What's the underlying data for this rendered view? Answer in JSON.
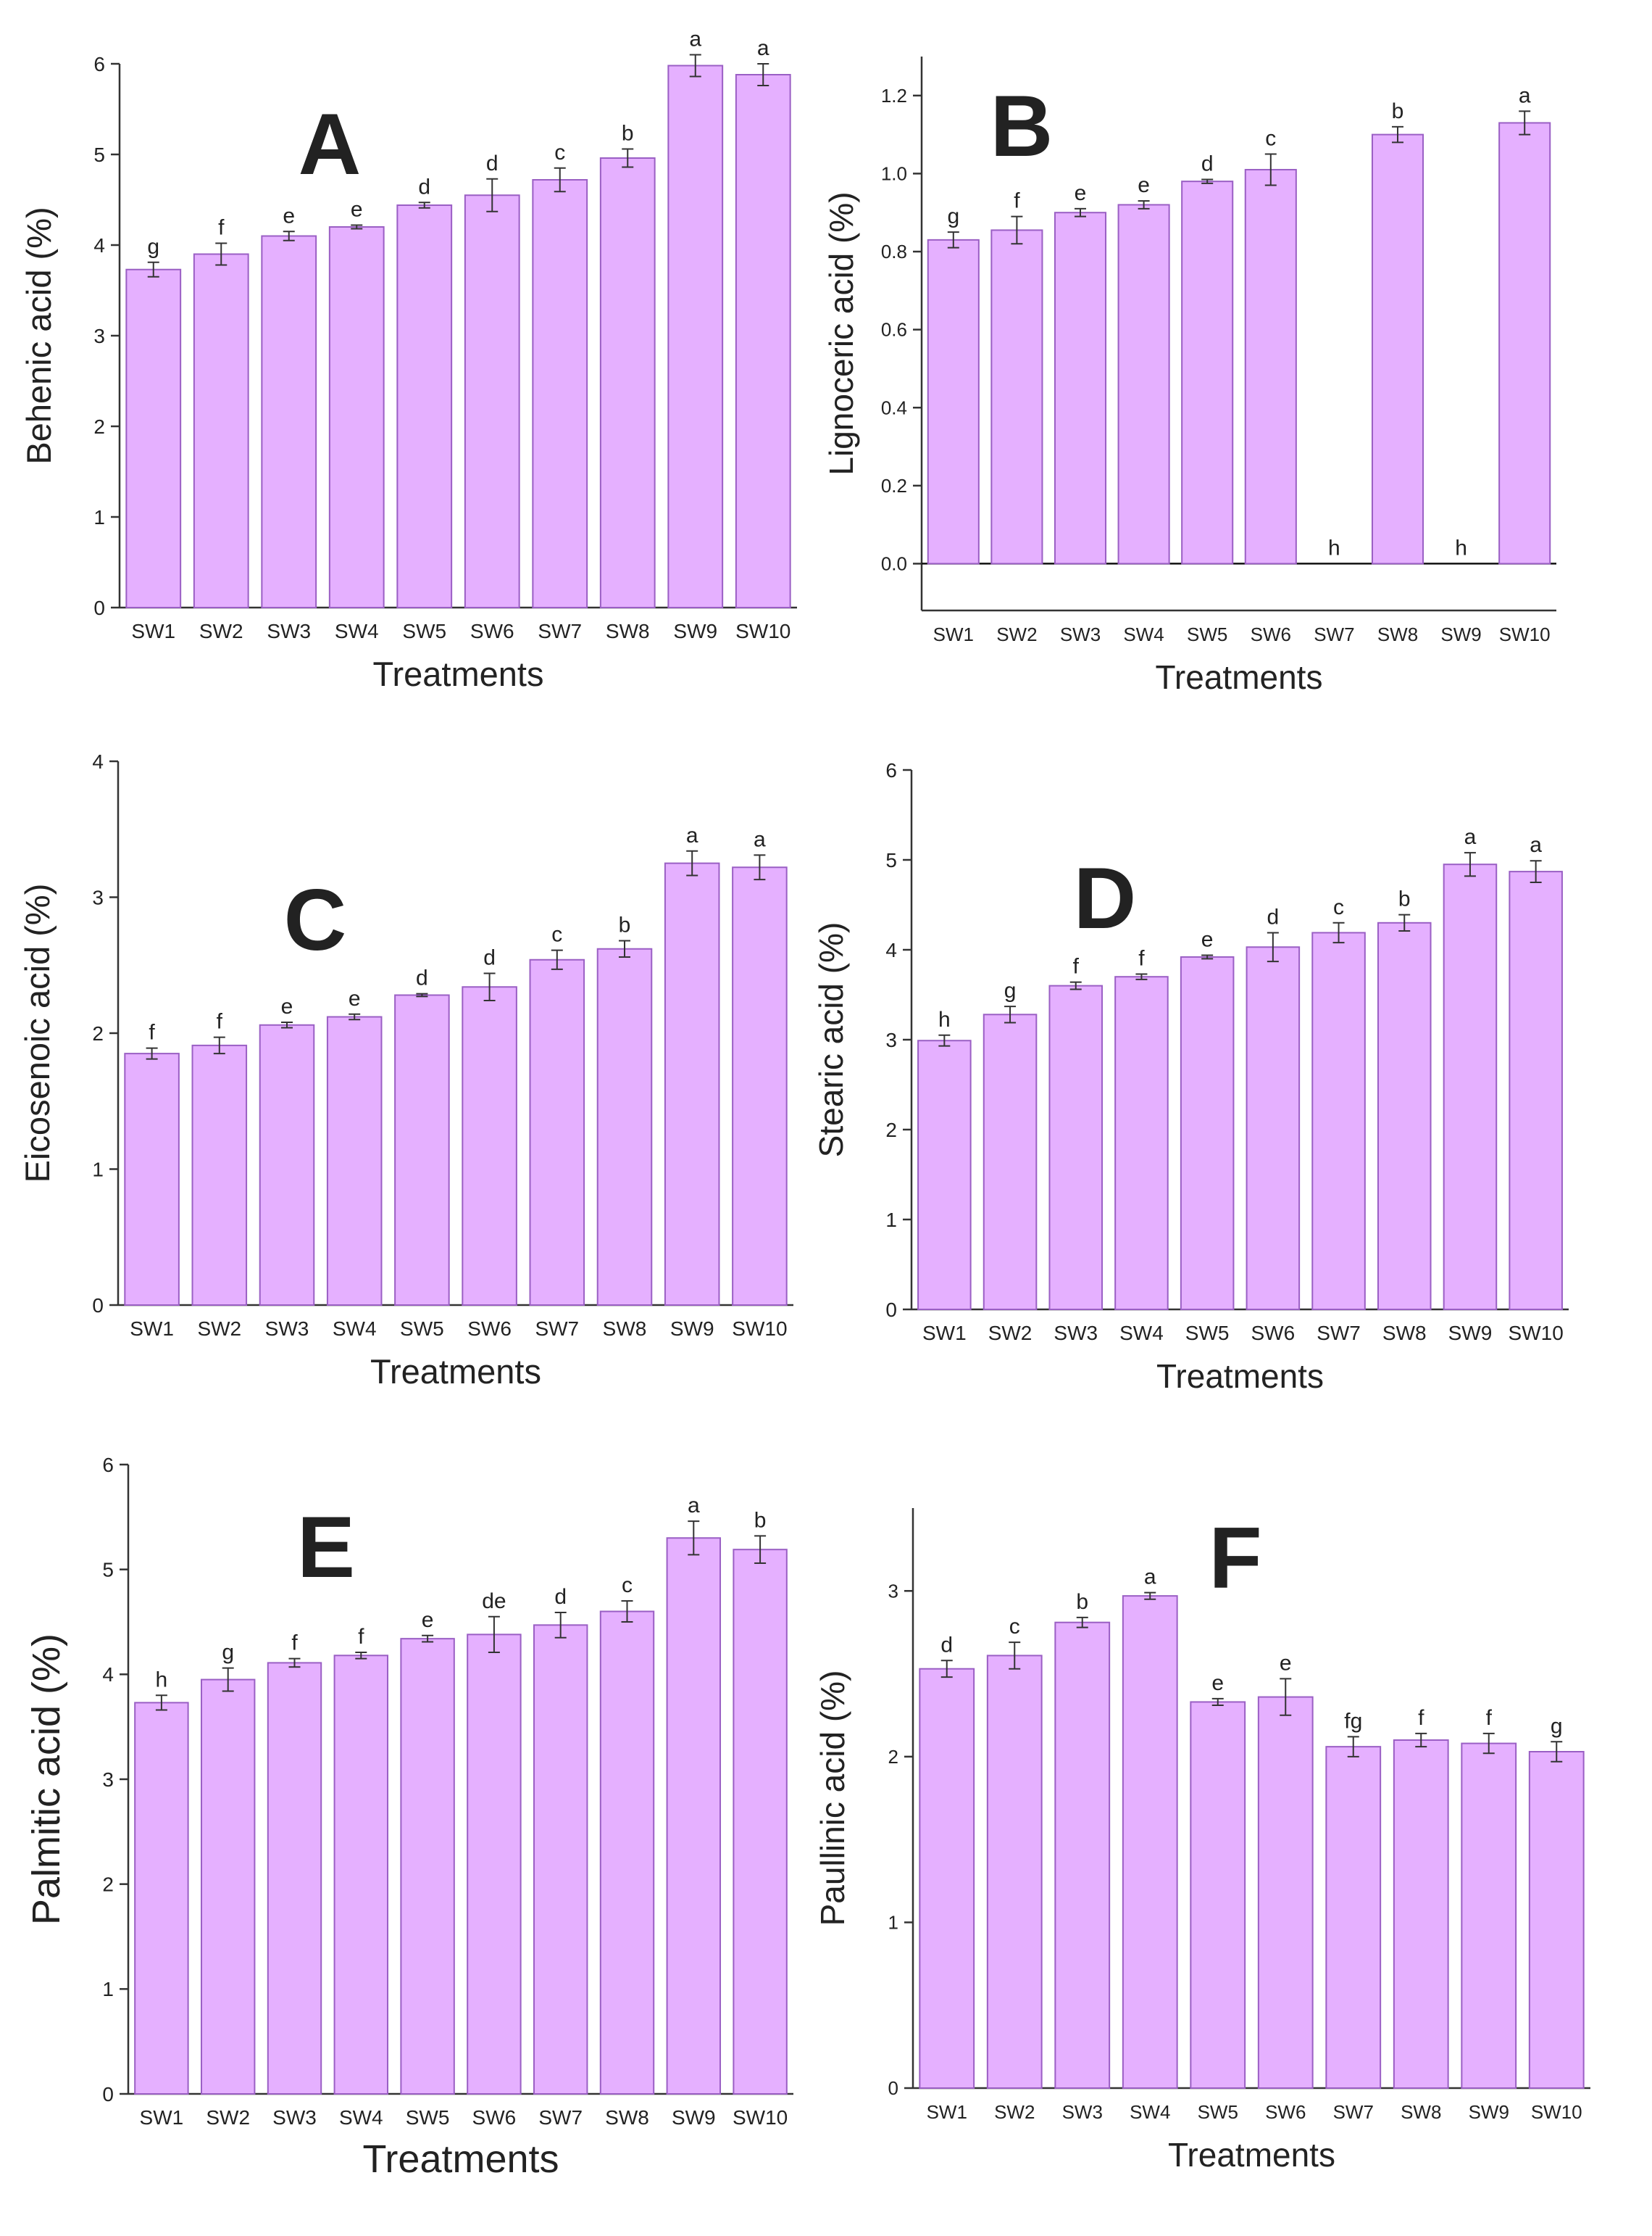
{
  "figure": {
    "bar_color": "#e5b0ff",
    "bar_stroke": "#9a5fc4",
    "axis_color": "#333333"
  },
  "chart_data": [
    {
      "type": "bar",
      "panel": "A",
      "xlabel": "Treatments",
      "ylabel": "Behenic acid (%)",
      "categories": [
        "SW1",
        "SW2",
        "SW3",
        "SW4",
        "SW5",
        "SW6",
        "SW7",
        "SW8",
        "SW9",
        "SW10"
      ],
      "values": [
        3.73,
        3.9,
        4.1,
        4.2,
        4.44,
        4.55,
        4.72,
        4.96,
        5.98,
        5.88
      ],
      "errors": [
        0.08,
        0.12,
        0.05,
        0.02,
        0.03,
        0.18,
        0.13,
        0.1,
        0.12,
        0.12
      ],
      "letters": [
        "g",
        "f",
        "e",
        "e",
        "d",
        "d",
        "c",
        "b",
        "a",
        "a"
      ],
      "ylim": [
        0,
        6
      ],
      "yticks": [
        0,
        1,
        2,
        3,
        4,
        5,
        6
      ],
      "ytick_labels": [
        "0",
        "1",
        "2",
        "3",
        "4",
        "5",
        "6"
      ]
    },
    {
      "type": "bar",
      "panel": "B",
      "xlabel": "Treatments",
      "ylabel": "Lignoceric acid (%)",
      "categories": [
        "SW1",
        "SW2",
        "SW3",
        "SW4",
        "SW5",
        "SW6",
        "SW7",
        "SW8",
        "SW9",
        "SW10"
      ],
      "values": [
        0.83,
        0.855,
        0.9,
        0.92,
        0.98,
        1.01,
        0,
        1.1,
        0,
        1.13
      ],
      "errors": [
        0.02,
        0.035,
        0.01,
        0.01,
        0.005,
        0.04,
        0,
        0.02,
        0,
        0.03
      ],
      "letters": [
        "g",
        "f",
        "e",
        "e",
        "d",
        "c",
        "h",
        "b",
        "h",
        "a"
      ],
      "ylim": [
        -0.12,
        1.3
      ],
      "yticks": [
        0,
        0.2,
        0.4,
        0.6,
        0.8,
        1.0,
        1.2
      ],
      "ytick_labels": [
        "0.0",
        "0.2",
        "0.4",
        "0.6",
        "0.8",
        "1.0",
        "1.2"
      ]
    },
    {
      "type": "bar",
      "panel": "C",
      "xlabel": "Treatments",
      "ylabel": "Eicosenoic acid (%)",
      "categories": [
        "SW1",
        "SW2",
        "SW3",
        "SW4",
        "SW5",
        "SW6",
        "SW7",
        "SW8",
        "SW9",
        "SW10"
      ],
      "values": [
        1.85,
        1.91,
        2.06,
        2.12,
        2.28,
        2.34,
        2.54,
        2.62,
        3.25,
        3.22
      ],
      "errors": [
        0.04,
        0.06,
        0.02,
        0.02,
        0.01,
        0.1,
        0.07,
        0.06,
        0.09,
        0.09
      ],
      "letters": [
        "f",
        "f",
        "e",
        "e",
        "d",
        "d",
        "c",
        "b",
        "a",
        "a"
      ],
      "ylim": [
        0,
        4
      ],
      "yticks": [
        0,
        1,
        2,
        3,
        4
      ],
      "ytick_labels": [
        "0",
        "1",
        "2",
        "3",
        "4"
      ]
    },
    {
      "type": "bar",
      "panel": "D",
      "xlabel": "Treatments",
      "ylabel": "Stearic acid (%)",
      "categories": [
        "SW1",
        "SW2",
        "SW3",
        "SW4",
        "SW5",
        "SW6",
        "SW7",
        "SW8",
        "SW9",
        "SW10"
      ],
      "values": [
        2.99,
        3.28,
        3.6,
        3.7,
        3.92,
        4.03,
        4.19,
        4.3,
        4.95,
        4.87
      ],
      "errors": [
        0.06,
        0.09,
        0.04,
        0.03,
        0.02,
        0.16,
        0.11,
        0.09,
        0.13,
        0.12
      ],
      "letters": [
        "h",
        "g",
        "f",
        "f",
        "e",
        "d",
        "c",
        "b",
        "a",
        "a"
      ],
      "ylim": [
        0,
        6
      ],
      "yticks": [
        0,
        1,
        2,
        3,
        4,
        5,
        6
      ],
      "ytick_labels": [
        "0",
        "1",
        "2",
        "3",
        "4",
        "5",
        "6"
      ]
    },
    {
      "type": "bar",
      "panel": "E",
      "xlabel": "Treatments",
      "ylabel": "Palmitic acid (%)",
      "categories": [
        "SW1",
        "SW2",
        "SW3",
        "SW4",
        "SW5",
        "SW6",
        "SW7",
        "SW8",
        "SW9",
        "SW10"
      ],
      "values": [
        3.73,
        3.95,
        4.11,
        4.18,
        4.34,
        4.38,
        4.47,
        4.6,
        5.3,
        5.19
      ],
      "errors": [
        0.07,
        0.11,
        0.04,
        0.03,
        0.03,
        0.17,
        0.12,
        0.1,
        0.16,
        0.13
      ],
      "letters": [
        "h",
        "g",
        "f",
        "f",
        "e",
        "de",
        "d",
        "c",
        "a",
        "b"
      ],
      "ylim": [
        0,
        6
      ],
      "yticks": [
        0,
        1,
        2,
        3,
        4,
        5,
        6
      ],
      "ytick_labels": [
        "0",
        "1",
        "2",
        "3",
        "4",
        "5",
        "6"
      ]
    },
    {
      "type": "bar",
      "panel": "F",
      "xlabel": "Treatments",
      "ylabel": "Paullinic acid (%)",
      "categories": [
        "SW1",
        "SW2",
        "SW3",
        "SW4",
        "SW5",
        "SW6",
        "SW7",
        "SW8",
        "SW9",
        "SW10"
      ],
      "values": [
        2.53,
        2.61,
        2.81,
        2.97,
        2.33,
        2.36,
        2.06,
        2.1,
        2.08,
        2.03
      ],
      "errors": [
        0.05,
        0.08,
        0.03,
        0.02,
        0.02,
        0.11,
        0.06,
        0.04,
        0.06,
        0.06
      ],
      "letters": [
        "d",
        "c",
        "b",
        "a",
        "e",
        "e",
        "fg",
        "f",
        "f",
        "g"
      ],
      "ylim": [
        0,
        3.5
      ],
      "yticks": [
        0,
        1,
        2,
        3
      ],
      "ytick_labels": [
        "0",
        "1",
        "2",
        "3"
      ]
    }
  ]
}
